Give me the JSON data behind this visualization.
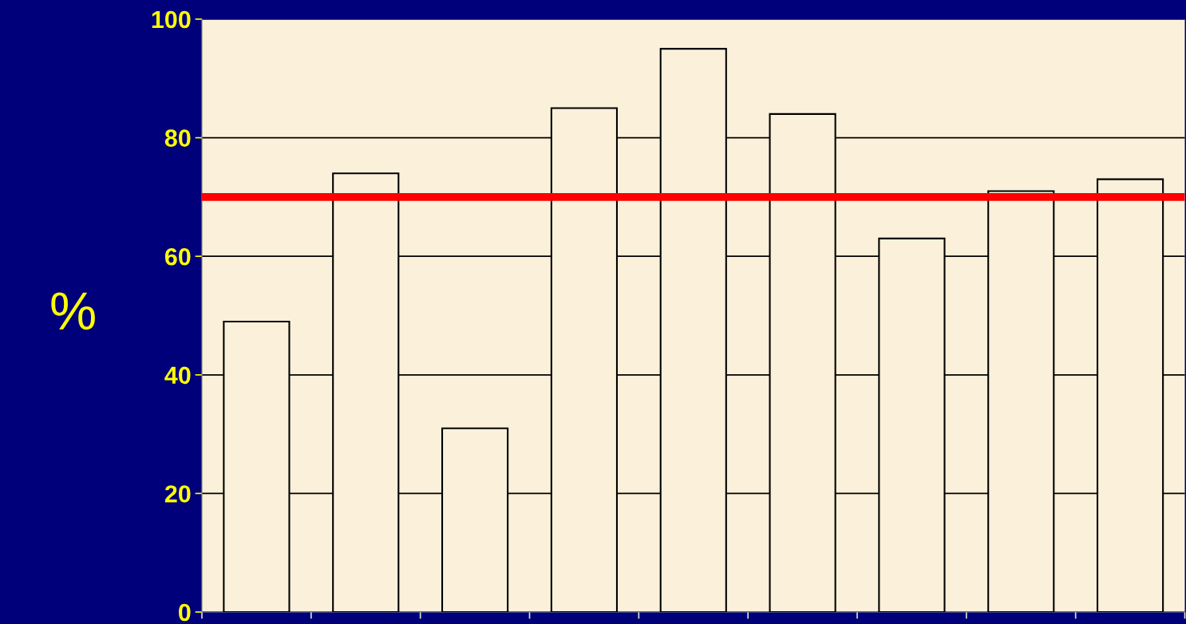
{
  "chart_data": {
    "type": "bar",
    "ylabel": "%",
    "categories": [
      null,
      null,
      null,
      null,
      null,
      null,
      null,
      null,
      null
    ],
    "values": [
      49,
      74,
      31,
      85,
      95,
      84,
      63,
      71,
      73
    ],
    "color": "#fbf0da",
    "ylim": [
      0,
      100
    ],
    "yticks": [
      0,
      20,
      40,
      60,
      80,
      100
    ],
    "grid": "y",
    "ref_lines": [
      {
        "axis": "y",
        "value": 70,
        "color": "#ff0000"
      }
    ]
  }
}
